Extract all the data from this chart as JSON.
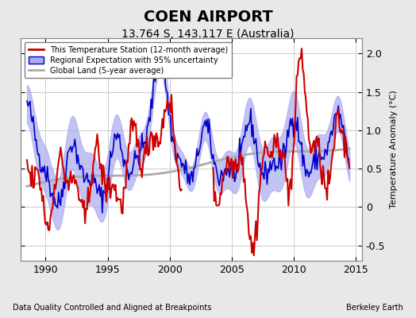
{
  "title": "COEN AIRPORT",
  "subtitle": "13.764 S, 143.117 E (Australia)",
  "ylabel": "Temperature Anomaly (°C)",
  "xlabel_left": "Data Quality Controlled and Aligned at Breakpoints",
  "xlabel_right": "Berkeley Earth",
  "ylim": [
    -0.7,
    2.2
  ],
  "xlim": [
    1988.0,
    2015.5
  ],
  "yticks": [
    -0.5,
    0,
    0.5,
    1.0,
    1.5,
    2.0
  ],
  "xticks": [
    1990,
    1995,
    2000,
    2005,
    2010,
    2015
  ],
  "bg_color": "#e8e8e8",
  "plot_bg_color": "#ffffff",
  "grid_color": "#cccccc",
  "red_color": "#cc0000",
  "blue_color": "#0000cc",
  "fill_color": "#aaaaee",
  "gray_color": "#aaaaaa",
  "title_fontsize": 14,
  "subtitle_fontsize": 10,
  "label_fontsize": 8,
  "tick_fontsize": 9
}
